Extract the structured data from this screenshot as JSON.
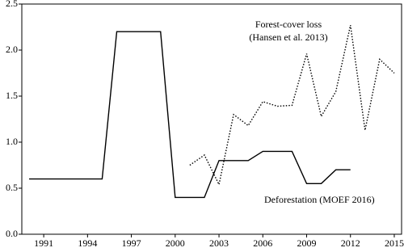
{
  "chart_data": {
    "type": "line",
    "x": [
      1990,
      1991,
      1992,
      1993,
      1994,
      1995,
      1996,
      1997,
      1998,
      1999,
      2000,
      2001,
      2002,
      2003,
      2004,
      2005,
      2006,
      2007,
      2008,
      2009,
      2010,
      2011,
      2012,
      2013,
      2014,
      2015
    ],
    "series": [
      {
        "name": "Forest-cover loss",
        "source": "(Hansen et al. 2013)",
        "color": "#000000",
        "style": "dotted",
        "values": [
          null,
          null,
          null,
          null,
          null,
          null,
          null,
          null,
          null,
          null,
          null,
          0.75,
          0.86,
          0.54,
          1.3,
          1.18,
          1.44,
          1.39,
          1.4,
          1.96,
          1.28,
          1.55,
          2.27,
          1.13,
          1.9,
          1.75
        ]
      },
      {
        "name": "Deforestation (MOEF 2016)",
        "color": "#000000",
        "style": "solid",
        "values": [
          0.6,
          0.6,
          0.6,
          0.6,
          0.6,
          0.6,
          2.2,
          2.2,
          2.2,
          2.2,
          0.4,
          0.4,
          0.4,
          0.8,
          0.8,
          0.8,
          0.9,
          0.9,
          0.9,
          0.55,
          0.55,
          0.7,
          0.7,
          null,
          null,
          null
        ]
      }
    ],
    "xlim": [
      1989.5,
      2015.5
    ],
    "xticks": [
      1991,
      1994,
      1997,
      2000,
      2003,
      2006,
      2009,
      2012,
      2015
    ],
    "ylim": [
      0,
      2.5
    ],
    "yticks": [
      {
        "value": 0,
        "label": "0.0"
      },
      0.5,
      {
        "value": 1,
        "label": "1.0"
      },
      1.5,
      {
        "value": 2,
        "label": "2.0"
      },
      2.5
    ]
  }
}
